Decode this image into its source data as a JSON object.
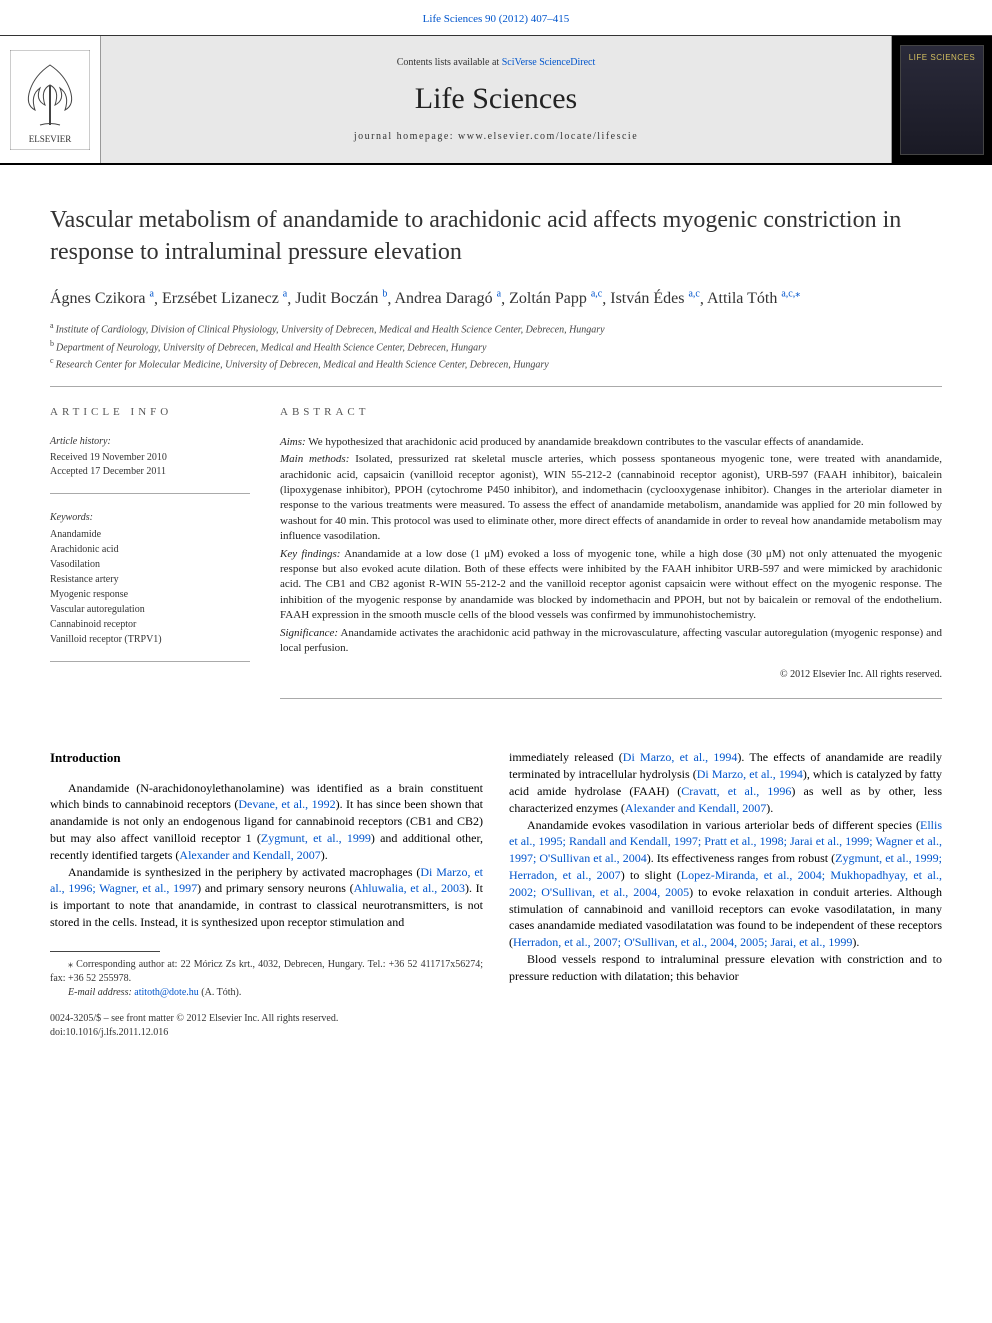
{
  "header": {
    "citation_link": "Life Sciences 90 (2012) 407–415",
    "contents_prefix": "Contents lists available at ",
    "contents_site": "SciVerse ScienceDirect",
    "journal_title": "Life Sciences",
    "homepage_label": "journal homepage: www.elsevier.com/locate/lifescie",
    "publisher_name": "ELSEVIER",
    "cover_label": "LIFE SCIENCES"
  },
  "article": {
    "title": "Vascular metabolism of anandamide to arachidonic acid affects myogenic constriction in response to intraluminal pressure elevation",
    "authors": [
      {
        "name": "Ágnes Czikora",
        "aff": "a"
      },
      {
        "name": "Erzsébet Lizanecz",
        "aff": "a"
      },
      {
        "name": "Judit Boczán",
        "aff": "b"
      },
      {
        "name": "Andrea Daragó",
        "aff": "a"
      },
      {
        "name": "Zoltán Papp",
        "aff": "a,c"
      },
      {
        "name": "István Édes",
        "aff": "a,c"
      },
      {
        "name": "Attila Tóth",
        "aff": "a,c,",
        "corr": true
      }
    ],
    "affiliations": [
      {
        "key": "a",
        "text": "Institute of Cardiology, Division of Clinical Physiology, University of Debrecen, Medical and Health Science Center, Debrecen, Hungary"
      },
      {
        "key": "b",
        "text": "Department of Neurology, University of Debrecen, Medical and Health Science Center, Debrecen, Hungary"
      },
      {
        "key": "c",
        "text": "Research Center for Molecular Medicine, University of Debrecen, Medical and Health Science Center, Debrecen, Hungary"
      }
    ]
  },
  "info": {
    "heading": "article info",
    "history_label": "Article history:",
    "received": "Received 19 November 2010",
    "accepted": "Accepted 17 December 2011",
    "keywords_label": "Keywords:",
    "keywords": [
      "Anandamide",
      "Arachidonic acid",
      "Vasodilation",
      "Resistance artery",
      "Myogenic response",
      "Vascular autoregulation",
      "Cannabinoid receptor",
      "Vanilloid receptor (TRPV1)"
    ]
  },
  "abstract": {
    "heading": "abstract",
    "aims_label": "Aims:",
    "aims": "We hypothesized that arachidonic acid produced by anandamide breakdown contributes to the vascular effects of anandamide.",
    "methods_label": "Main methods:",
    "methods": "Isolated, pressurized rat skeletal muscle arteries, which possess spontaneous myogenic tone, were treated with anandamide, arachidonic acid, capsaicin (vanilloid receptor agonist), WIN 55-212-2 (cannabinoid receptor agonist), URB-597 (FAAH inhibitor), baicalein (lipoxygenase inhibitor), PPOH (cytochrome P450 inhibitor), and indomethacin (cyclooxygenase inhibitor). Changes in the arteriolar diameter in response to the various treatments were measured. To assess the effect of anandamide metabolism, anandamide was applied for 20 min followed by washout for 40 min. This protocol was used to eliminate other, more direct effects of anandamide in order to reveal how anandamide metabolism may influence vasodilation.",
    "findings_label": "Key findings:",
    "findings": "Anandamide at a low dose (1 μM) evoked a loss of myogenic tone, while a high dose (30 μM) not only attenuated the myogenic response but also evoked acute dilation. Both of these effects were inhibited by the FAAH inhibitor URB-597 and were mimicked by arachidonic acid. The CB1 and CB2 agonist R-WIN 55-212-2 and the vanilloid receptor agonist capsaicin were without effect on the myogenic response. The inhibition of the myogenic response by anandamide was blocked by indomethacin and PPOH, but not by baicalein or removal of the endothelium. FAAH expression in the smooth muscle cells of the blood vessels was confirmed by immunohistochemistry.",
    "significance_label": "Significance:",
    "significance": "Anandamide activates the arachidonic acid pathway in the microvasculature, affecting vascular autoregulation (myogenic response) and local perfusion.",
    "copyright": "© 2012 Elsevier Inc. All rights reserved."
  },
  "body": {
    "intro_heading": "Introduction",
    "col1_p1_a": "Anandamide (N-arachidonoylethanolamine) was identified as a brain constituent which binds to cannabinoid receptors (",
    "col1_p1_link1": "Devane, et al., 1992",
    "col1_p1_b": "). It has since been shown that anandamide is not only an endogenous ligand for cannabinoid receptors (CB1 and CB2) but may also affect vanilloid receptor 1 (",
    "col1_p1_link2": "Zygmunt, et al., 1999",
    "col1_p1_c": ") and additional other, recently identified targets (",
    "col1_p1_link3": "Alexander and Kendall, 2007",
    "col1_p1_d": ").",
    "col1_p2_a": "Anandamide is synthesized in the periphery by activated macrophages (",
    "col1_p2_link1": "Di Marzo, et al., 1996; Wagner, et al., 1997",
    "col1_p2_b": ") and primary sensory neurons (",
    "col1_p2_link2": "Ahluwalia, et al., 2003",
    "col1_p2_c": "). It is important to note that anandamide, in contrast to classical neurotransmitters, is not stored in the cells. Instead, it is synthesized upon receptor stimulation and",
    "col2_p1_a": "immediately released (",
    "col2_p1_link1": "Di Marzo, et al., 1994",
    "col2_p1_b": "). The effects of anandamide are readily terminated by intracellular hydrolysis (",
    "col2_p1_link2": "Di Marzo, et al., 1994",
    "col2_p1_c": "), which is catalyzed by fatty acid amide hydrolase (FAAH) (",
    "col2_p1_link3": "Cravatt, et al., 1996",
    "col2_p1_d": ") as well as by other, less characterized enzymes (",
    "col2_p1_link4": "Alexander and Kendall, 2007",
    "col2_p1_e": ").",
    "col2_p2_a": "Anandamide evokes vasodilation in various arteriolar beds of different species (",
    "col2_p2_link1": "Ellis et al., 1995; Randall and Kendall, 1997; Pratt et al., 1998; Jarai et al., 1999; Wagner et al., 1997; O'Sullivan et al., 2004",
    "col2_p2_b": "). Its effectiveness ranges from robust (",
    "col2_p2_link2": "Zygmunt, et al., 1999; Herradon, et al., 2007",
    "col2_p2_c": ") to slight (",
    "col2_p2_link3": "Lopez-Miranda, et al., 2004; Mukhopadhyay, et al., 2002; O'Sullivan, et al., 2004, 2005",
    "col2_p2_d": ") to evoke relaxation in conduit arteries. Although stimulation of cannabinoid and vanilloid receptors can evoke vasodilatation, in many cases anandamide mediated vasodilatation was found to be independent of these receptors (",
    "col2_p2_link4": "Herradon, et al., 2007; O'Sullivan, et al., 2004, 2005; Jarai, et al., 1999",
    "col2_p2_e": ").",
    "col2_p3": "Blood vessels respond to intraluminal pressure elevation with constriction and to pressure reduction with dilatation; this behavior"
  },
  "footnote": {
    "corr": "⁎ Corresponding author at: 22 Móricz Zs krt., 4032, Debrecen, Hungary. Tel.: +36 52 411717x56274; fax: +36 52 255978.",
    "email_label": "E-mail address:",
    "email": "atitoth@dote.hu",
    "email_suffix": "(A. Tóth).",
    "issn": "0024-3205/$ – see front matter © 2012 Elsevier Inc. All rights reserved.",
    "doi": "doi:10.1016/j.lfs.2011.12.016"
  },
  "colors": {
    "link": "#0055cc",
    "text": "#000000",
    "band_bg": "#e8e8e8",
    "cover_bg": "#1a1a25",
    "cover_text": "#d4c060"
  }
}
